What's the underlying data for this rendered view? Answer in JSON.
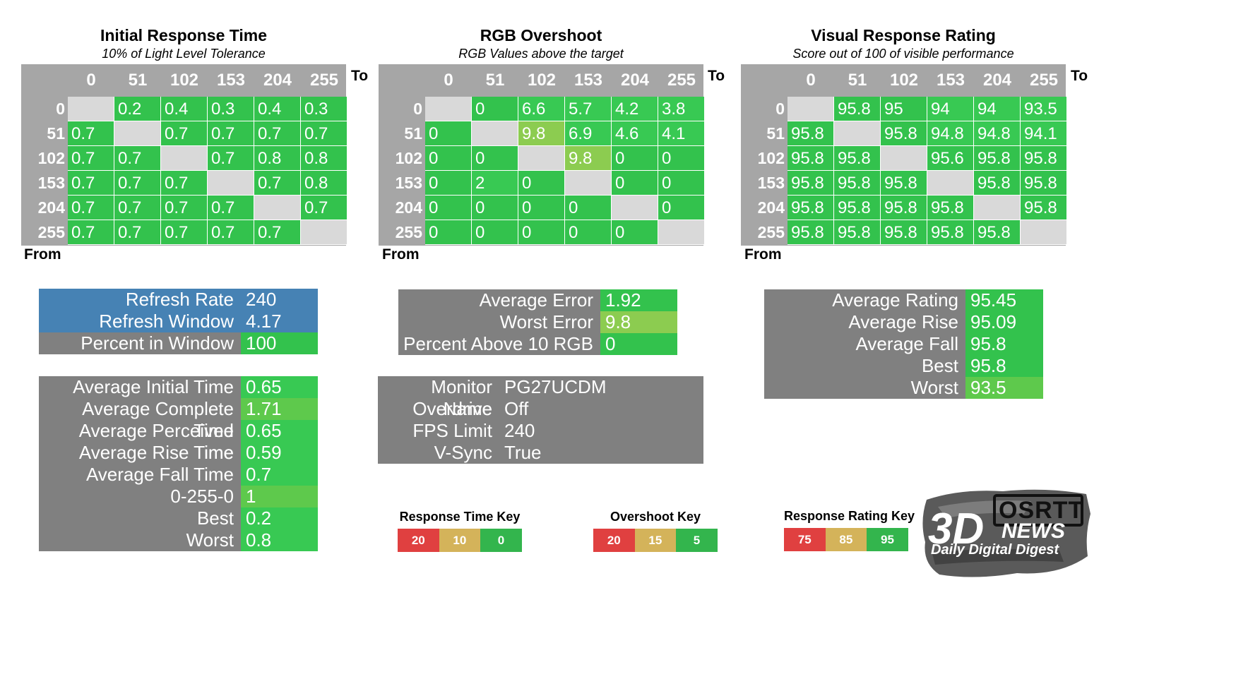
{
  "colors": {
    "green": "#33c24d",
    "green_bright": "#38c953",
    "green_light": "#5ec94c",
    "green_yellow": "#8ccc50",
    "gray_header": "#a6a6a6",
    "gray_blank": "#d9d9d9",
    "gray_panel": "#808080",
    "blue_panel": "#4682b4",
    "key_red": "#e04040",
    "key_yellow": "#d4b35a",
    "key_green": "#33b54d"
  },
  "chart_data": [
    {
      "type": "heatmap",
      "title": "Initial Response Time",
      "subtitle": "10% of Light Level Tolerance",
      "x_axis_label": "To",
      "y_axis_label": "From",
      "levels": [
        "0",
        "51",
        "102",
        "153",
        "204",
        "255"
      ],
      "values": [
        [
          null,
          "0.2",
          "0.4",
          "0.3",
          "0.4",
          "0.3"
        ],
        [
          "0.7",
          null,
          "0.7",
          "0.7",
          "0.7",
          "0.7"
        ],
        [
          "0.7",
          "0.7",
          null,
          "0.7",
          "0.8",
          "0.8"
        ],
        [
          "0.7",
          "0.7",
          "0.7",
          null,
          "0.7",
          "0.8"
        ],
        [
          "0.7",
          "0.7",
          "0.7",
          "0.7",
          null,
          "0.7"
        ],
        [
          "0.7",
          "0.7",
          "0.7",
          "0.7",
          "0.7",
          null
        ]
      ]
    },
    {
      "type": "heatmap",
      "title": "RGB Overshoot",
      "subtitle": "RGB Values above the target",
      "x_axis_label": "To",
      "y_axis_label": "From",
      "levels": [
        "0",
        "51",
        "102",
        "153",
        "204",
        "255"
      ],
      "values": [
        [
          null,
          "0",
          "6.6",
          "5.7",
          "4.2",
          "3.8"
        ],
        [
          "0",
          null,
          "9.8",
          "6.9",
          "4.6",
          "4.1"
        ],
        [
          "0",
          "0",
          null,
          "9.8",
          "0",
          "0"
        ],
        [
          "0",
          "2",
          "0",
          null,
          "0",
          "0"
        ],
        [
          "0",
          "0",
          "0",
          "0",
          null,
          "0"
        ],
        [
          "0",
          "0",
          "0",
          "0",
          "0",
          null
        ]
      ]
    },
    {
      "type": "heatmap",
      "title": "Visual Response Rating",
      "subtitle": "Score out of 100 of visible performance",
      "x_axis_label": "To",
      "y_axis_label": "From",
      "levels": [
        "0",
        "51",
        "102",
        "153",
        "204",
        "255"
      ],
      "values": [
        [
          null,
          "95.8",
          "95",
          "94",
          "94",
          "93.5"
        ],
        [
          "95.8",
          null,
          "95.8",
          "94.8",
          "94.8",
          "94.1"
        ],
        [
          "95.8",
          "95.8",
          null,
          "95.6",
          "95.8",
          "95.8"
        ],
        [
          "95.8",
          "95.8",
          "95.8",
          null,
          "95.8",
          "95.8"
        ],
        [
          "95.8",
          "95.8",
          "95.8",
          "95.8",
          null,
          "95.8"
        ],
        [
          "95.8",
          "95.8",
          "95.8",
          "95.8",
          "95.8",
          null
        ]
      ]
    }
  ],
  "refresh_panel": [
    {
      "label": "Refresh Rate",
      "value": "240"
    },
    {
      "label": "Refresh Window",
      "value": "4.17"
    },
    {
      "label": "Percent in Window",
      "value": "100"
    }
  ],
  "times_panel": [
    {
      "label": "Average Initial Time",
      "value": "0.65"
    },
    {
      "label": "Average Complete Time",
      "value": "1.71"
    },
    {
      "label": "Average Perceived Time",
      "value": "0.65"
    },
    {
      "label": "Average Rise Time",
      "value": "0.59"
    },
    {
      "label": "Average Fall Time",
      "value": "0.7"
    },
    {
      "label": "0-255-0",
      "value": "1"
    },
    {
      "label": "Best",
      "value": "0.2"
    },
    {
      "label": "Worst",
      "value": "0.8"
    }
  ],
  "overshoot_panel": [
    {
      "label": "Average Error",
      "value": "1.92"
    },
    {
      "label": "Worst Error",
      "value": "9.8"
    },
    {
      "label": "Percent Above 10 RGB",
      "value": "0"
    }
  ],
  "monitor_panel": [
    {
      "label": "Monitor Name",
      "value": "PG27UCDM"
    },
    {
      "label": "Overdrive",
      "value": "Off"
    },
    {
      "label": "FPS Limit",
      "value": "240"
    },
    {
      "label": "V-Sync",
      "value": "True"
    }
  ],
  "rating_panel": [
    {
      "label": "Average Rating",
      "value": "95.45"
    },
    {
      "label": "Average Rise",
      "value": "95.09"
    },
    {
      "label": "Average Fall",
      "value": "95.8"
    },
    {
      "label": "Best",
      "value": "95.8"
    },
    {
      "label": "Worst",
      "value": "93.5"
    }
  ],
  "keys": [
    {
      "title": "Response Time Key",
      "values": [
        "20",
        "10",
        "0"
      ]
    },
    {
      "title": "Overshoot Key",
      "values": [
        "20",
        "15",
        "5"
      ]
    },
    {
      "title": "Response Rating Key",
      "values": [
        "75",
        "85",
        "95"
      ]
    }
  ],
  "logo": {
    "brand_main": "3D",
    "brand_box": "OSRTT",
    "brand_sub": "NEWS",
    "tagline": "Daily Digital Digest"
  }
}
